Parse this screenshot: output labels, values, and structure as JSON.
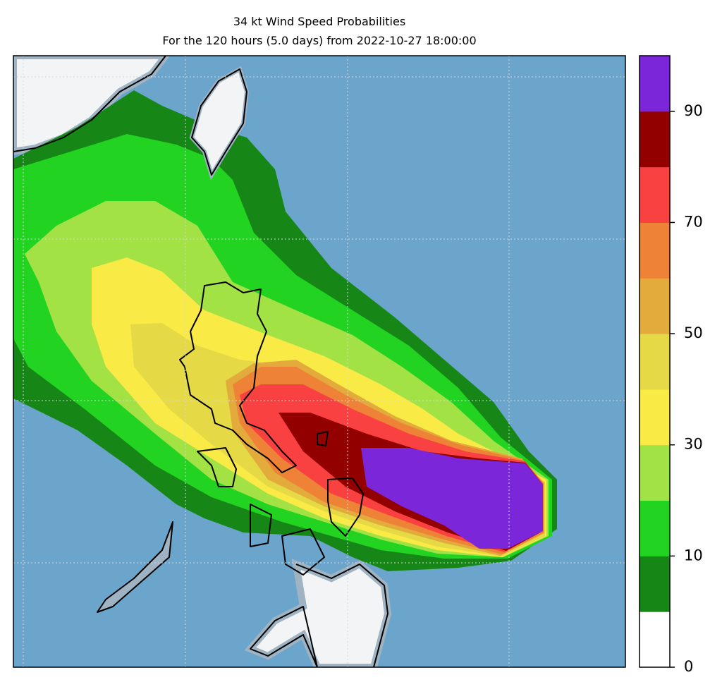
{
  "title": "34 kt Wind Speed Probabilities",
  "subtitle": "For the 120 hours (5.0 days) from 2022-10-27 18:00:00",
  "colorbar": {
    "bounds": [
      0,
      5,
      10,
      20,
      30,
      40,
      50,
      60,
      70,
      80,
      90,
      100
    ],
    "colors": [
      "#ffffff",
      "#168716",
      "#22d322",
      "#a2e244",
      "#f9ea45",
      "#e5d945",
      "#e2ab3b",
      "#ee8236",
      "#f94141",
      "#920000",
      "#7b26d8"
    ],
    "ticks": [
      0,
      10,
      30,
      50,
      70,
      90
    ]
  }
}
